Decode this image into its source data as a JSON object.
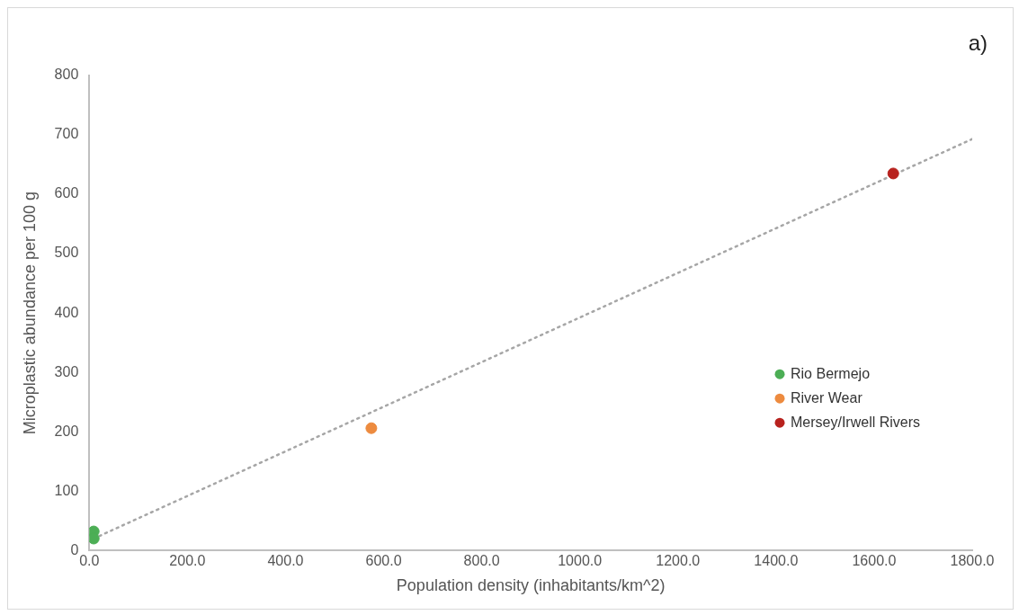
{
  "chart_data": {
    "type": "scatter",
    "xlabel": "Population density (inhabitants/km^2)",
    "ylabel": "Microplastic abundance per 100 g",
    "annotations": [
      "a)"
    ],
    "xlim": [
      0,
      1800
    ],
    "xticks": [
      {
        "value": 0,
        "label": "0.0"
      },
      {
        "value": 200,
        "label": "200.0"
      },
      {
        "value": 400,
        "label": "400.0"
      },
      {
        "value": 600,
        "label": "600.0"
      },
      {
        "value": 800,
        "label": "800.0"
      },
      {
        "value": 1000,
        "label": "1000.0"
      },
      {
        "value": 1200,
        "label": "1200.0"
      },
      {
        "value": 1400,
        "label": "1400.0"
      },
      {
        "value": 1600,
        "label": "1600.0"
      },
      {
        "value": 1800,
        "label": "1800.0"
      }
    ],
    "ylim": [
      0,
      800
    ],
    "yticks": [
      0,
      100,
      200,
      300,
      400,
      500,
      600,
      700,
      800
    ],
    "grid": false,
    "legend": "right",
    "marker": "circle",
    "series": [
      {
        "name": "Rio Bermejo",
        "color": "#4cae55",
        "x": [
          9,
          9
        ],
        "values": [
          32,
          20
        ]
      },
      {
        "name": "River Wear",
        "color": "#ed8b3f",
        "x": [
          575
        ],
        "values": [
          206
        ]
      },
      {
        "name": "Mersey/Irwell Rivers",
        "color": "#b8221e",
        "x": [
          1639
        ],
        "values": [
          635
        ]
      },
      {
        "type": "line",
        "color": "#a6a6a6",
        "line_style": "dotted",
        "marker": "none",
        "x": [
          9,
          1800
        ],
        "values": [
          20,
          693
        ]
      }
    ]
  }
}
